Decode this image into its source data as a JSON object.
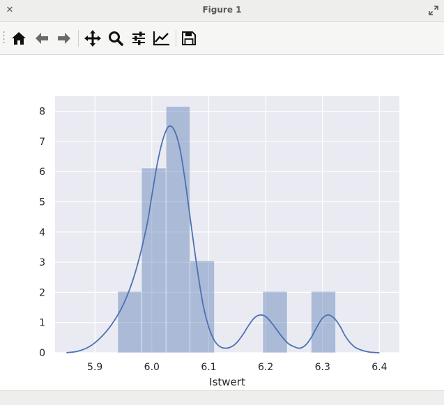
{
  "window": {
    "title": "Figure 1"
  },
  "toolbar": {
    "buttons": [
      {
        "name": "home-button",
        "icon": "home-icon"
      },
      {
        "name": "back-button",
        "icon": "arrow-left-icon"
      },
      {
        "name": "forward-button",
        "icon": "arrow-right-icon"
      },
      {
        "name": "pan-button",
        "icon": "move-icon"
      },
      {
        "name": "zoom-button",
        "icon": "magnifier-icon"
      },
      {
        "name": "configure-subplots-button",
        "icon": "sliders-icon"
      },
      {
        "name": "edit-axes-button",
        "icon": "line-chart-icon"
      },
      {
        "name": "save-button",
        "icon": "floppy-disk-icon"
      }
    ]
  },
  "chart_data": {
    "type": "bar",
    "subtype": "histogram-with-kde",
    "xlabel": "Istwert",
    "ylabel": "",
    "xlim": [
      5.83,
      6.435
    ],
    "ylim": [
      0,
      8.5
    ],
    "xticks": [
      5.9,
      6.0,
      6.1,
      6.2,
      6.3,
      6.4
    ],
    "xtick_labels": [
      "5.9",
      "6.0",
      "6.1",
      "6.2",
      "6.3",
      "6.4"
    ],
    "yticks": [
      0,
      1,
      2,
      3,
      4,
      5,
      6,
      7,
      8
    ],
    "ytick_labels": [
      "0",
      "1",
      "2",
      "3",
      "4",
      "5",
      "6",
      "7",
      "8"
    ],
    "grid": true,
    "bins": [
      {
        "x0": 5.94,
        "x1": 5.982,
        "value": 2.03
      },
      {
        "x0": 5.982,
        "x1": 6.025,
        "value": 6.12
      },
      {
        "x0": 6.025,
        "x1": 6.067,
        "value": 8.16
      },
      {
        "x0": 6.067,
        "x1": 6.11,
        "value": 3.05
      },
      {
        "x0": 6.11,
        "x1": 6.153,
        "value": 0
      },
      {
        "x0": 6.153,
        "x1": 6.195,
        "value": 0
      },
      {
        "x0": 6.195,
        "x1": 6.238,
        "value": 2.03
      },
      {
        "x0": 6.238,
        "x1": 6.28,
        "value": 0
      },
      {
        "x0": 6.28,
        "x1": 6.323,
        "value": 2.03
      }
    ],
    "kde": {
      "x": [
        5.85,
        5.87,
        5.89,
        5.91,
        5.93,
        5.95,
        5.97,
        5.99,
        6.0,
        6.01,
        6.02,
        6.03,
        6.04,
        6.05,
        6.06,
        6.07,
        6.08,
        6.09,
        6.1,
        6.11,
        6.12,
        6.13,
        6.14,
        6.15,
        6.16,
        6.17,
        6.18,
        6.19,
        6.2,
        6.21,
        6.22,
        6.23,
        6.24,
        6.25,
        6.26,
        6.27,
        6.28,
        6.29,
        6.3,
        6.31,
        6.32,
        6.33,
        6.34,
        6.35,
        6.36,
        6.38,
        6.4
      ],
      "y": [
        0.0,
        0.05,
        0.2,
        0.5,
        0.95,
        1.6,
        2.6,
        4.1,
        5.2,
        6.3,
        7.1,
        7.5,
        7.35,
        6.7,
        5.5,
        4.1,
        2.75,
        1.6,
        0.85,
        0.4,
        0.2,
        0.15,
        0.2,
        0.35,
        0.6,
        0.9,
        1.15,
        1.25,
        1.2,
        1.0,
        0.75,
        0.5,
        0.3,
        0.2,
        0.15,
        0.25,
        0.5,
        0.85,
        1.15,
        1.25,
        1.15,
        0.9,
        0.55,
        0.3,
        0.15,
        0.03,
        0.0
      ]
    },
    "colors": {
      "background": "#eaeaf2",
      "grid": "#ffffff",
      "bar_fill": "#4c72b0",
      "bar_alpha": 0.4,
      "kde_line": "#4c72b0"
    }
  }
}
